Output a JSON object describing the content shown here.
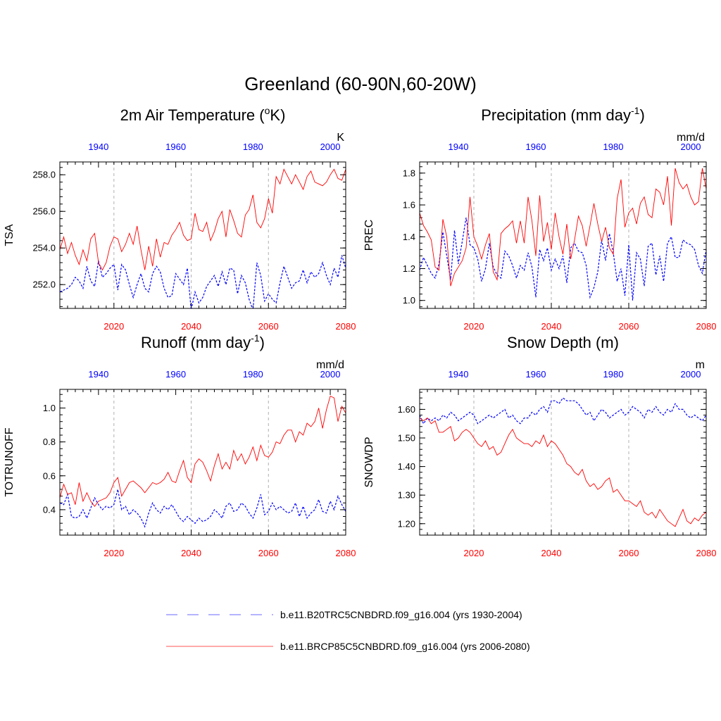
{
  "page_title": "Greenland (60-90N,60-20W)",
  "colors": {
    "hist": "#0000ff",
    "future": "#ff0000",
    "grid": "#b0b0b0",
    "hist_legend": "#8888ff",
    "future_legend": "#ff5555"
  },
  "legend": [
    {
      "key": "hist",
      "label": "b.e11.B20TRC5CNBDRD.f09_g16.004 (yrs 1930-2004)"
    },
    {
      "key": "future",
      "label": "b.e11.BRCP85C5CNBDRD.f09_g16.004 (yrs 2006-2080)"
    }
  ],
  "chart_data": [
    {
      "id": "tsa",
      "type": "line",
      "title": "2m Air Temperature (",
      "title_sup": "o",
      "title_tail": "K)",
      "ylabel": "TSA",
      "units": "K",
      "ylim": [
        250.7,
        258.7
      ],
      "yticks": [
        252.0,
        254.0,
        256.0,
        258.0
      ],
      "ytick_labels": [
        "252.0",
        "254.0",
        "256.0",
        "258.0"
      ],
      "x_bottom": {
        "range": [
          2006,
          2080
        ],
        "ticks": [
          2020,
          2040,
          2060,
          2080
        ],
        "labels": [
          "2020",
          "2040",
          "2060",
          "2080"
        ]
      },
      "x_top": {
        "range": [
          1930,
          2004
        ],
        "ticks": [
          1940,
          1960,
          1980,
          2000
        ],
        "labels": [
          "1940",
          "1960",
          "1980",
          "2000"
        ]
      },
      "gridlines_x": [
        2020,
        2040,
        2060
      ],
      "series": [
        {
          "name": "hist",
          "x_start": 1930,
          "values": [
            251.6,
            251.7,
            251.8,
            252.0,
            252.4,
            252.2,
            251.8,
            253.0,
            252.2,
            251.9,
            253.3,
            252.4,
            252.6,
            252.9,
            253.1,
            251.7,
            253.1,
            252.8,
            252.0,
            251.3,
            252.0,
            252.6,
            251.8,
            251.6,
            252.6,
            253.0,
            252.7,
            251.8,
            251.3,
            251.4,
            252.6,
            252.3,
            252.0,
            252.9,
            250.6,
            251.6,
            251.0,
            251.3,
            251.9,
            252.2,
            252.5,
            251.9,
            252.7,
            252.0,
            252.9,
            252.8,
            251.5,
            252.5,
            252.1,
            251.2,
            250.6,
            253.2,
            252.5,
            251.1,
            251.5,
            251.2,
            251.0,
            252.1,
            253.0,
            252.4,
            251.8,
            252.1,
            252.2,
            252.8,
            252.1,
            252.7,
            252.4,
            252.6,
            253.2,
            252.5,
            252.0,
            252.9,
            252.4,
            253.6,
            252.9
          ]
        },
        {
          "name": "future",
          "x_start": 2006,
          "values": [
            253.9,
            254.6,
            253.7,
            254.3,
            253.6,
            253.1,
            253.9,
            253.3,
            254.5,
            254.8,
            253.2,
            252.8,
            253.2,
            254.1,
            254.6,
            254.5,
            253.8,
            254.2,
            254.8,
            254.2,
            255.2,
            253.9,
            252.8,
            254.1,
            253.0,
            254.5,
            253.5,
            254.3,
            254.2,
            254.7,
            255.0,
            255.4,
            254.7,
            254.4,
            254.5,
            255.9,
            255.0,
            254.9,
            255.4,
            254.4,
            254.9,
            255.6,
            256.0,
            254.6,
            256.1,
            255.5,
            254.8,
            254.6,
            255.8,
            256.1,
            256.9,
            255.4,
            255.1,
            255.6,
            256.7,
            255.9,
            257.9,
            257.5,
            258.3,
            257.9,
            257.5,
            258.0,
            257.6,
            257.2,
            257.9,
            258.2,
            257.6,
            257.5,
            257.4,
            257.6,
            258.0,
            258.3,
            257.8,
            257.7,
            258.3
          ]
        }
      ]
    },
    {
      "id": "prec",
      "type": "line",
      "title": "Precipitation (mm day",
      "title_sup": "-1",
      "title_tail": ")",
      "ylabel": "PREC",
      "units": "mm/d",
      "ylim": [
        0.95,
        1.87
      ],
      "yticks": [
        1.0,
        1.2,
        1.4,
        1.6,
        1.8
      ],
      "ytick_labels": [
        "1.0",
        "1.2",
        "1.4",
        "1.6",
        "1.8"
      ],
      "x_bottom": {
        "range": [
          2006,
          2080
        ],
        "ticks": [
          2020,
          2040,
          2060,
          2080
        ],
        "labels": [
          "2020",
          "2040",
          "2060",
          "2080"
        ]
      },
      "x_top": {
        "range": [
          1930,
          2004
        ],
        "ticks": [
          1940,
          1960,
          1980,
          2000
        ],
        "labels": [
          "1940",
          "1960",
          "1980",
          "2000"
        ]
      },
      "gridlines_x": [
        2020,
        2040,
        2060
      ],
      "series": [
        {
          "name": "hist",
          "x_start": 1930,
          "values": [
            1.19,
            1.27,
            1.22,
            1.17,
            1.14,
            1.23,
            1.43,
            1.28,
            1.13,
            1.44,
            1.23,
            1.37,
            1.52,
            1.35,
            1.33,
            1.26,
            1.12,
            1.2,
            1.36,
            1.21,
            1.16,
            1.14,
            1.31,
            1.28,
            1.22,
            1.14,
            1.22,
            1.19,
            1.3,
            1.21,
            1.02,
            1.32,
            1.25,
            1.33,
            1.19,
            1.26,
            1.2,
            1.28,
            1.11,
            1.33,
            1.36,
            1.31,
            1.3,
            1.22,
            1.02,
            1.08,
            1.18,
            1.38,
            1.25,
            1.42,
            1.3,
            1.12,
            1.2,
            1.03,
            1.35,
            1.0,
            1.3,
            1.26,
            1.09,
            1.34,
            1.36,
            1.16,
            1.28,
            1.12,
            1.36,
            1.4,
            1.27,
            1.27,
            1.38,
            1.36,
            1.35,
            1.32,
            1.22,
            1.17,
            1.32
          ]
        },
        {
          "name": "future",
          "x_start": 2006,
          "values": [
            1.55,
            1.47,
            1.43,
            1.38,
            1.21,
            1.19,
            1.51,
            1.4,
            1.09,
            1.17,
            1.21,
            1.25,
            1.33,
            1.65,
            1.4,
            1.34,
            1.26,
            1.35,
            1.42,
            1.18,
            1.13,
            1.42,
            1.45,
            1.47,
            1.5,
            1.36,
            1.5,
            1.36,
            1.65,
            1.5,
            1.28,
            1.66,
            1.37,
            1.49,
            1.32,
            1.55,
            1.4,
            1.29,
            1.48,
            1.26,
            1.38,
            1.53,
            1.47,
            1.34,
            1.47,
            1.61,
            1.48,
            1.37,
            1.46,
            1.33,
            1.29,
            1.64,
            1.76,
            1.46,
            1.55,
            1.58,
            1.48,
            1.61,
            1.65,
            1.54,
            1.52,
            1.7,
            1.68,
            1.6,
            1.78,
            1.47,
            1.83,
            1.74,
            1.7,
            1.73,
            1.65,
            1.6,
            1.62,
            1.83,
            1.7
          ]
        }
      ]
    },
    {
      "id": "runoff",
      "type": "line",
      "title": "Runoff (mm day",
      "title_sup": "-1",
      "title_tail": ")",
      "ylabel": "TOTRUNOFF",
      "units": "mm/d",
      "ylim": [
        0.25,
        1.11
      ],
      "yticks": [
        0.4,
        0.6,
        0.8,
        1.0
      ],
      "ytick_labels": [
        "0.4",
        "0.6",
        "0.8",
        "1.0"
      ],
      "x_bottom": {
        "range": [
          2006,
          2080
        ],
        "ticks": [
          2020,
          2040,
          2060,
          2080
        ],
        "labels": [
          "2020",
          "2040",
          "2060",
          "2080"
        ]
      },
      "x_top": {
        "range": [
          1930,
          2004
        ],
        "ticks": [
          1940,
          1960,
          1980,
          2000
        ],
        "labels": [
          "1940",
          "1960",
          "1980",
          "2000"
        ]
      },
      "gridlines_x": [
        2020,
        2040,
        2060
      ],
      "series": [
        {
          "name": "hist",
          "x_start": 1930,
          "values": [
            0.44,
            0.43,
            0.49,
            0.36,
            0.35,
            0.36,
            0.4,
            0.35,
            0.41,
            0.47,
            0.43,
            0.4,
            0.42,
            0.41,
            0.43,
            0.52,
            0.4,
            0.42,
            0.37,
            0.4,
            0.38,
            0.35,
            0.3,
            0.38,
            0.44,
            0.4,
            0.38,
            0.42,
            0.4,
            0.43,
            0.39,
            0.35,
            0.33,
            0.36,
            0.34,
            0.32,
            0.35,
            0.33,
            0.34,
            0.36,
            0.4,
            0.38,
            0.35,
            0.42,
            0.44,
            0.39,
            0.4,
            0.44,
            0.42,
            0.38,
            0.35,
            0.41,
            0.49,
            0.37,
            0.39,
            0.44,
            0.4,
            0.42,
            0.4,
            0.38,
            0.39,
            0.44,
            0.36,
            0.42,
            0.35,
            0.38,
            0.4,
            0.46,
            0.39,
            0.38,
            0.45,
            0.4,
            0.48,
            0.43,
            0.39
          ]
        },
        {
          "name": "future",
          "x_start": 2006,
          "values": [
            0.47,
            0.55,
            0.49,
            0.5,
            0.43,
            0.56,
            0.45,
            0.5,
            0.45,
            0.42,
            0.45,
            0.46,
            0.47,
            0.5,
            0.56,
            0.59,
            0.48,
            0.52,
            0.56,
            0.57,
            0.55,
            0.53,
            0.5,
            0.53,
            0.56,
            0.55,
            0.56,
            0.58,
            0.62,
            0.57,
            0.56,
            0.63,
            0.69,
            0.59,
            0.56,
            0.67,
            0.7,
            0.68,
            0.63,
            0.57,
            0.66,
            0.73,
            0.64,
            0.68,
            0.64,
            0.75,
            0.69,
            0.73,
            0.67,
            0.71,
            0.77,
            0.69,
            0.78,
            0.72,
            0.71,
            0.74,
            0.8,
            0.79,
            0.84,
            0.87,
            0.87,
            0.8,
            0.86,
            0.84,
            0.91,
            0.89,
            0.92,
            1.0,
            0.88,
            0.99,
            1.07,
            1.06,
            0.92,
            1.01,
            0.97
          ]
        }
      ]
    },
    {
      "id": "snowdp",
      "type": "line",
      "title": "Snow Depth (m)",
      "title_sup": "",
      "title_tail": "",
      "ylabel": "SNOWDP",
      "units": "m",
      "ylim": [
        1.16,
        1.67
      ],
      "yticks": [
        1.2,
        1.3,
        1.4,
        1.5,
        1.6
      ],
      "ytick_labels": [
        "1.20",
        "1.30",
        "1.40",
        "1.50",
        "1.60"
      ],
      "x_bottom": {
        "range": [
          2006,
          2080
        ],
        "ticks": [
          2020,
          2040,
          2060,
          2080
        ],
        "labels": [
          "2020",
          "2040",
          "2060",
          "2080"
        ]
      },
      "x_top": {
        "range": [
          1930,
          2004
        ],
        "ticks": [
          1940,
          1960,
          1980,
          2000
        ],
        "labels": [
          "1940",
          "1960",
          "1980",
          "2000"
        ]
      },
      "gridlines_x": [
        2020,
        2040,
        2060
      ],
      "series": [
        {
          "name": "hist",
          "x_start": 1930,
          "values": [
            1.58,
            1.55,
            1.57,
            1.56,
            1.57,
            1.56,
            1.58,
            1.57,
            1.59,
            1.58,
            1.56,
            1.57,
            1.58,
            1.59,
            1.58,
            1.55,
            1.56,
            1.57,
            1.58,
            1.57,
            1.58,
            1.59,
            1.6,
            1.57,
            1.58,
            1.56,
            1.55,
            1.57,
            1.57,
            1.59,
            1.58,
            1.6,
            1.61,
            1.59,
            1.63,
            1.63,
            1.62,
            1.64,
            1.63,
            1.63,
            1.63,
            1.62,
            1.6,
            1.58,
            1.59,
            1.56,
            1.58,
            1.6,
            1.59,
            1.57,
            1.58,
            1.59,
            1.6,
            1.58,
            1.59,
            1.61,
            1.6,
            1.59,
            1.57,
            1.6,
            1.59,
            1.61,
            1.59,
            1.58,
            1.6,
            1.59,
            1.62,
            1.6,
            1.6,
            1.58,
            1.57,
            1.58,
            1.57,
            1.56,
            1.58
          ]
        },
        {
          "name": "future",
          "x_start": 2006,
          "values": [
            1.57,
            1.56,
            1.57,
            1.55,
            1.56,
            1.52,
            1.52,
            1.53,
            1.54,
            1.49,
            1.5,
            1.52,
            1.53,
            1.52,
            1.5,
            1.48,
            1.47,
            1.49,
            1.46,
            1.47,
            1.44,
            1.45,
            1.48,
            1.51,
            1.53,
            1.5,
            1.49,
            1.48,
            1.48,
            1.47,
            1.49,
            1.48,
            1.51,
            1.47,
            1.49,
            1.48,
            1.46,
            1.44,
            1.41,
            1.4,
            1.38,
            1.37,
            1.39,
            1.35,
            1.33,
            1.34,
            1.32,
            1.33,
            1.35,
            1.36,
            1.31,
            1.32,
            1.3,
            1.28,
            1.28,
            1.27,
            1.26,
            1.28,
            1.24,
            1.23,
            1.24,
            1.22,
            1.25,
            1.23,
            1.21,
            1.2,
            1.19,
            1.22,
            1.25,
            1.21,
            1.2,
            1.22,
            1.21,
            1.23,
            1.24
          ]
        }
      ]
    }
  ]
}
